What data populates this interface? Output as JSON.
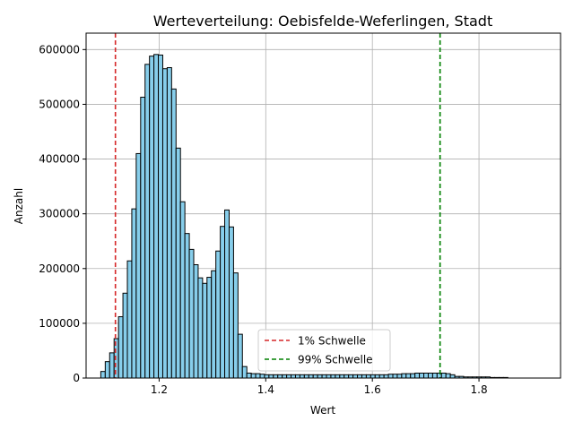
{
  "chart_data": {
    "type": "histogram",
    "title": "Werteverteilung: Oebisfelde-Weferlingen, Stadt",
    "xlabel": "Wert",
    "ylabel": "Anzahl",
    "xlim": [
      1.063,
      1.953
    ],
    "ylim": [
      0,
      630000
    ],
    "xticks": [
      1.2,
      1.4,
      1.6,
      1.8
    ],
    "xtick_labels": [
      "1.2",
      "1.4",
      "1.6",
      "1.8"
    ],
    "yticks": [
      0,
      100000,
      200000,
      300000,
      400000,
      500000,
      600000
    ],
    "ytick_labels": [
      "0",
      "100000",
      "200000",
      "300000",
      "400000",
      "500000",
      "600000"
    ],
    "grid": true,
    "bar_color": "#87ceeb",
    "bar_edge_color": "#000000",
    "bins": {
      "start": 1.0906,
      "width": 0.0083,
      "counts": [
        12000,
        30000,
        46000,
        72000,
        112000,
        155000,
        214000,
        309000,
        410000,
        513000,
        573000,
        588000,
        591000,
        590000,
        565000,
        567000,
        528000,
        420000,
        322000,
        264000,
        235000,
        207000,
        183000,
        173000,
        184000,
        196000,
        232000,
        277000,
        307000,
        276000,
        192000,
        80000,
        21000,
        9000,
        8000,
        8000,
        7000,
        6000,
        6000,
        6000,
        6000,
        6000,
        6000,
        6000,
        6000,
        6000,
        6000,
        6000,
        6000,
        6000,
        6000,
        6000,
        6000,
        6000,
        6000,
        6000,
        6000,
        6000,
        6000,
        6000,
        6000,
        6000,
        6000,
        6000,
        6000,
        7000,
        7000,
        7000,
        8000,
        8000,
        8000,
        9000,
        9000,
        9000,
        9000,
        9000,
        9000,
        9000,
        8000,
        6000,
        3000,
        3000,
        2000,
        2000,
        2000,
        2000,
        2000,
        2000,
        1000,
        1000,
        1000,
        1000
      ]
    },
    "thresholds": [
      {
        "name": "1% Schwelle",
        "value": 1.118,
        "color": "#d62728"
      },
      {
        "name": "99% Schwelle",
        "value": 1.727,
        "color": "#008000"
      }
    ],
    "legend": {
      "placement": "lower center"
    }
  }
}
